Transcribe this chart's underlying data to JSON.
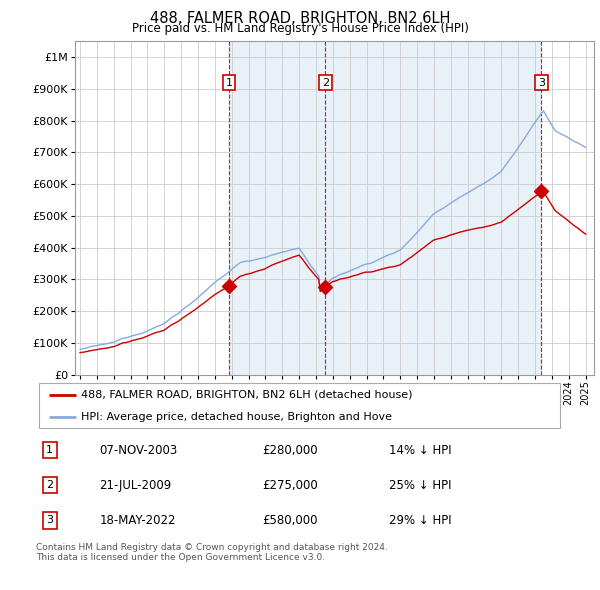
{
  "title": "488, FALMER ROAD, BRIGHTON, BN2 6LH",
  "subtitle": "Price paid vs. HM Land Registry's House Price Index (HPI)",
  "ylim": [
    0,
    1050000
  ],
  "yticks": [
    0,
    100000,
    200000,
    300000,
    400000,
    500000,
    600000,
    700000,
    800000,
    900000,
    1000000
  ],
  "ytick_labels": [
    "£0",
    "£100K",
    "£200K",
    "£300K",
    "£400K",
    "£500K",
    "£600K",
    "£700K",
    "£800K",
    "£900K",
    "£1M"
  ],
  "sales": [
    {
      "date_num": 2003.85,
      "price": 280000,
      "label": "1"
    },
    {
      "date_num": 2009.55,
      "price": 275000,
      "label": "2"
    },
    {
      "date_num": 2022.38,
      "price": 580000,
      "label": "3"
    }
  ],
  "sale_color": "#cc0000",
  "hpi_color": "#88aadd",
  "hpi_bg_color": "#e8f0f8",
  "vline_color": "#cc0000",
  "annotation_box_color": "#cc0000",
  "legend_sale": "488, FALMER ROAD, BRIGHTON, BN2 6LH (detached house)",
  "legend_hpi": "HPI: Average price, detached house, Brighton and Hove",
  "table_rows": [
    {
      "num": "1",
      "date": "07-NOV-2003",
      "price": "£280,000",
      "pct": "14% ↓ HPI"
    },
    {
      "num": "2",
      "date": "21-JUL-2009",
      "price": "£275,000",
      "pct": "25% ↓ HPI"
    },
    {
      "num": "3",
      "date": "18-MAY-2022",
      "price": "£580,000",
      "pct": "29% ↓ HPI"
    }
  ],
  "footnote": "Contains HM Land Registry data © Crown copyright and database right 2024.\nThis data is licensed under the Open Government Licence v3.0."
}
